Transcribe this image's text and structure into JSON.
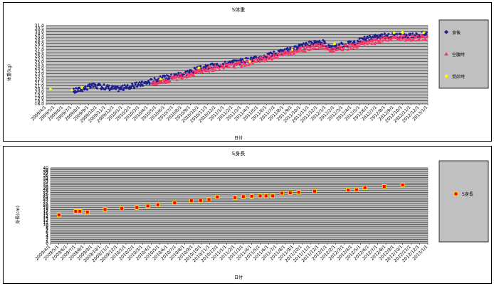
{
  "charts": {
    "weight": {
      "type": "scatter",
      "title": "S体重",
      "xlabel": "日付",
      "ylabel": "体重(kg)",
      "ylim": [
        18.0,
        31.0
      ],
      "ystep": 0.5,
      "y_ticks": [
        "18.0",
        "18.5",
        "19.0",
        "19.5",
        "20.0",
        "20.5",
        "21.0",
        "21.5",
        "22.0",
        "22.5",
        "23.0",
        "23.5",
        "24.0",
        "24.5",
        "25.0",
        "25.5",
        "26.0",
        "26.5",
        "27.0",
        "27.5",
        "28.0",
        "28.5",
        "29.0",
        "29.5",
        "30.0",
        "30.5",
        "31.0"
      ],
      "x_ticks": [
        "2009/4/1",
        "2009/5/1",
        "2009/6/1",
        "2009/7/1",
        "2009/8/1",
        "2009/9/1",
        "2009/10/1",
        "2009/11/1",
        "2009/12/1",
        "2010/1/1",
        "2010/2/1",
        "2010/3/1",
        "2010/4/1",
        "2010/5/1",
        "2010/6/1",
        "2010/7/1",
        "2010/8/1",
        "2010/9/1",
        "2010/10/1",
        "2010/11/1",
        "2010/12/1",
        "2011/1/1",
        "2011/2/1",
        "2011/3/1",
        "2011/4/1",
        "2011/5/1",
        "2011/6/1",
        "2011/7/1",
        "2011/8/1",
        "2011/9/1",
        "2011/10/1",
        "2011/11/1",
        "2011/12/1",
        "2012/1/1",
        "2012/2/1",
        "2012/3/1",
        "2012/4/1",
        "2012/5/1",
        "2012/6/1",
        "2012/7/1",
        "2012/8/1",
        "2012/9/1",
        "2012/10/1",
        "2012/11/1",
        "2012/12/1",
        "2013/1/1"
      ],
      "grid": "horizontal",
      "legend": "right",
      "legend_items": [
        "食後",
        "空腹時",
        "受診時"
      ],
      "series": [
        {
          "name": "食後",
          "color": "#1f1f8f",
          "marker": "diamond",
          "trend": [
            [
              3.2,
              20.1
            ],
            [
              4.5,
              20.6
            ],
            [
              5.5,
              21.0
            ],
            [
              7.0,
              20.8
            ],
            [
              8.5,
              20.5
            ],
            [
              10.0,
              20.9
            ],
            [
              11.5,
              21.4
            ],
            [
              13.0,
              22.0
            ],
            [
              14.5,
              22.5
            ],
            [
              16.0,
              23.0
            ],
            [
              17.5,
              23.6
            ],
            [
              19.0,
              24.1
            ],
            [
              20.5,
              24.5
            ],
            [
              22.0,
              24.8
            ],
            [
              23.5,
              25.2
            ],
            [
              25.0,
              25.6
            ],
            [
              26.5,
              26.1
            ],
            [
              28.0,
              26.7
            ],
            [
              29.5,
              27.3
            ],
            [
              31.0,
              27.9
            ],
            [
              32.8,
              28.2
            ],
            [
              33.5,
              27.3
            ],
            [
              35.0,
              27.8
            ],
            [
              36.5,
              28.3
            ],
            [
              38.0,
              28.9
            ],
            [
              39.5,
              29.2
            ],
            [
              41.0,
              29.4
            ],
            [
              42.5,
              29.1
            ],
            [
              43.5,
              29.4
            ],
            [
              45.0,
              29.6
            ]
          ]
        },
        {
          "name": "空腹時",
          "color": "#ff3366",
          "marker": "triangle",
          "trend": [
            [
              12.5,
              21.5
            ],
            [
              14.0,
              21.8
            ],
            [
              15.5,
              22.4
            ],
            [
              17.0,
              23.0
            ],
            [
              18.5,
              23.6
            ],
            [
              20.0,
              24.0
            ],
            [
              22.0,
              24.4
            ],
            [
              24.0,
              24.9
            ],
            [
              26.0,
              25.6
            ],
            [
              28.0,
              26.3
            ],
            [
              30.0,
              27.0
            ],
            [
              32.5,
              27.7
            ],
            [
              33.5,
              26.9
            ],
            [
              35.5,
              27.4
            ],
            [
              37.5,
              28.0
            ],
            [
              39.5,
              28.6
            ],
            [
              41.5,
              29.0
            ],
            [
              43.0,
              28.9
            ],
            [
              45.0,
              29.1
            ]
          ]
        },
        {
          "name": "受診時",
          "color": "#ffff00",
          "marker": "circle",
          "points": [
            [
              0.5,
              20.5
            ],
            [
              3.0,
              20.3
            ],
            [
              4.2,
              20.7
            ],
            [
              13.5,
              22.1
            ],
            [
              18.0,
              24.0
            ],
            [
              24.0,
              25.0
            ],
            [
              29.0,
              27.0
            ],
            [
              34.0,
              28.0
            ],
            [
              41.0,
              29.8
            ],
            [
              42.0,
              29.9
            ],
            [
              44.5,
              29.8
            ]
          ]
        }
      ]
    },
    "height": {
      "type": "scatter",
      "title": "S身長",
      "xlabel": "日付",
      "ylabel": "身長(cm)",
      "ylim": [
        0,
        40
      ],
      "y_ticks": [
        "0",
        "1",
        "2",
        "3",
        "4",
        "5",
        "6",
        "7",
        "8",
        "9",
        "10",
        "11",
        "12",
        "13",
        "14",
        "15",
        "16",
        "17",
        "18",
        "19",
        "20",
        "21",
        "22",
        "23",
        "24",
        "25",
        "26",
        "27",
        "28",
        "29",
        "30",
        "31",
        "32",
        "33",
        "34",
        "35",
        "36",
        "37",
        "38",
        "39",
        "40"
      ],
      "x_ticks": [
        "2009/4/1",
        "2009/5/1",
        "2009/6/1",
        "2009/7/1",
        "2009/8/1",
        "2009/9/1",
        "2009/10/1",
        "2009/11/1",
        "2009/12/1",
        "2010/1/1",
        "2010/2/1",
        "2010/3/1",
        "2010/4/1",
        "2010/5/1",
        "2010/6/1",
        "2010/7/1",
        "2010/8/1",
        "2010/9/1",
        "2010/10/1",
        "2010/11/1",
        "2010/12/1",
        "2011/1/1",
        "2011/2/1",
        "2011/3/1",
        "2011/4/1",
        "2011/5/1",
        "2011/6/1",
        "2011/7/1",
        "2011/8/1",
        "2011/9/1",
        "2011/10/1",
        "2011/11/1",
        "2011/12/1",
        "2012/1/1",
        "2012/2/1",
        "2012/3/1",
        "2012/4/1",
        "2012/5/1",
        "2012/6/1",
        "2012/7/1",
        "2012/8/1",
        "2012/9/1",
        "2012/10/1",
        "2012/11/1",
        "2012/12/1",
        "2013/1/1"
      ],
      "grid": "horizontal",
      "legend": "right",
      "legend_items": [
        "S身長"
      ],
      "series": [
        {
          "name": "S身長",
          "color": "#ff0000",
          "border": "#ffd700",
          "marker": "square",
          "points": [
            [
              1.0,
              15
            ],
            [
              3.0,
              17
            ],
            [
              3.5,
              17
            ],
            [
              4.4,
              16.5
            ],
            [
              6.5,
              18
            ],
            [
              8.5,
              18.5
            ],
            [
              10.3,
              19
            ],
            [
              11.6,
              19.8
            ],
            [
              12.8,
              20.5
            ],
            [
              14.8,
              21.5
            ],
            [
              16.8,
              22.6
            ],
            [
              17.9,
              22.7
            ],
            [
              18.9,
              23.2
            ],
            [
              19.9,
              24.6
            ],
            [
              22.0,
              24.2
            ],
            [
              23.0,
              24.8
            ],
            [
              24.0,
              25.0
            ],
            [
              25.0,
              25.2
            ],
            [
              25.7,
              25.2
            ],
            [
              26.5,
              25.2
            ],
            [
              27.6,
              26.6
            ],
            [
              28.6,
              26.8
            ],
            [
              29.6,
              27.1
            ],
            [
              31.5,
              27.6
            ],
            [
              35.5,
              28.3
            ],
            [
              36.5,
              28.4
            ],
            [
              37.5,
              29.5
            ],
            [
              39.8,
              30.2
            ],
            [
              42.0,
              31.0
            ]
          ]
        }
      ]
    }
  }
}
